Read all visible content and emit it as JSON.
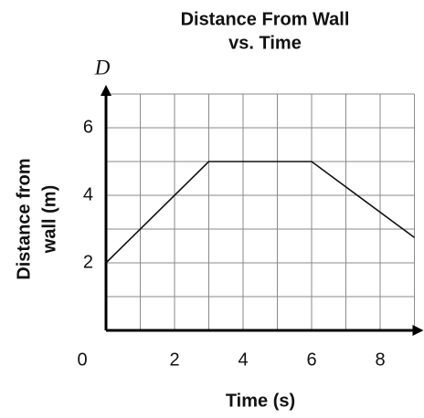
{
  "chart_data": {
    "type": "line",
    "title": [
      "Distance From Wall",
      "vs. Time"
    ],
    "y_axis_symbol": "D",
    "y_label": [
      "Distance from",
      "wall (m)"
    ],
    "x_label": "Time (s)",
    "x": [
      0,
      3,
      6,
      9
    ],
    "series": [
      {
        "color": "#111111",
        "values": [
          2,
          5,
          5,
          2.75
        ]
      }
    ],
    "xlim": [
      0,
      9
    ],
    "ylim": [
      0,
      7
    ],
    "xticks": [
      0,
      2,
      4,
      6,
      8
    ],
    "yticks": [
      2,
      4,
      6
    ],
    "xgrid": [
      1,
      2,
      3,
      4,
      5,
      6,
      7,
      8,
      9
    ],
    "ygrid": [
      1,
      2,
      3,
      4,
      5,
      6,
      7
    ],
    "grid": true
  }
}
